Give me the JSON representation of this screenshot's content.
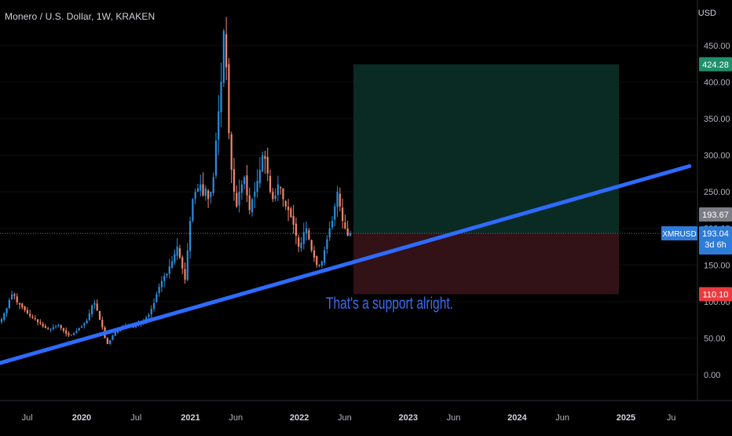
{
  "header": {
    "title": "Monero / U.S. Dollar, 1W, KRAKEN",
    "currency": "USD"
  },
  "annotation": {
    "text": "That's a support alright."
  },
  "colors": {
    "background": "#000000",
    "up": "#2a8de0",
    "down": "#f2866a",
    "trendline": "#2e6bff",
    "profit_zone": "#0a2a24",
    "loss_zone": "#321216",
    "target_tag": "#1f8f6a",
    "stop_tag": "#e83b3f",
    "symbol_tag": "#2e7bd8",
    "prev_close_tag": "#7b7e86"
  },
  "price_tags": {
    "target": "424.28",
    "stop": "110.10",
    "prev_close": "193.67",
    "symbol": "XMRUSD",
    "last": "193.04",
    "countdown": "3d 6h"
  },
  "chart_data": {
    "type": "candlestick",
    "title": "Monero / U.S. Dollar, 1W, KRAKEN",
    "y_unit": "USD",
    "ylim": [
      -20,
      505
    ],
    "y_ticks": [
      "0.00",
      "50.00",
      "100.00",
      "150.00",
      "200.00",
      "250.00",
      "300.00",
      "350.00",
      "400.00",
      "450.00"
    ],
    "x_ticks": [
      "Jul",
      "2020",
      "Jul",
      "2021",
      "Jun",
      "2022",
      "Jun",
      "2023",
      "Jun",
      "2024",
      "Jun",
      "2025",
      "Ju"
    ],
    "x_range": [
      "2019-04",
      "2025-08"
    ],
    "last_price": 193.04,
    "previous_close": 193.67,
    "position": {
      "entry": 193.04,
      "target": 424.28,
      "stop": 110.1,
      "start": "2022-06",
      "end": "2024-10"
    },
    "trendline": {
      "start": [
        "2019-04",
        16
      ],
      "end": [
        "2025-08",
        285
      ]
    },
    "weekly_closes": [
      76,
      84,
      91,
      102,
      110,
      108,
      99,
      96,
      92,
      88,
      84,
      80,
      78,
      76,
      72,
      70,
      66,
      64,
      62,
      62,
      65,
      66,
      68,
      64,
      60,
      56,
      54,
      55,
      57,
      60,
      64,
      66,
      70,
      74,
      84,
      95,
      98,
      88,
      75,
      65,
      50,
      42,
      47,
      54,
      58,
      62,
      64,
      65,
      67,
      68,
      66,
      65,
      68,
      70,
      72,
      74,
      78,
      82,
      90,
      98,
      110,
      120,
      128,
      135,
      138,
      148,
      155,
      165,
      175,
      160,
      145,
      130,
      170,
      210,
      240,
      250,
      255,
      260,
      245,
      255,
      240,
      250,
      270,
      320,
      360,
      400,
      470,
      420,
      330,
      280,
      250,
      230,
      250,
      260,
      270,
      245,
      225,
      240,
      250,
      265,
      280,
      300,
      295,
      275,
      250,
      240,
      245,
      260,
      255,
      240,
      230,
      225,
      215,
      205,
      190,
      175,
      180,
      195,
      200,
      185,
      170,
      160,
      150,
      150,
      155,
      170,
      185,
      200,
      210,
      230,
      250,
      230,
      210,
      200,
      190,
      193
    ]
  }
}
